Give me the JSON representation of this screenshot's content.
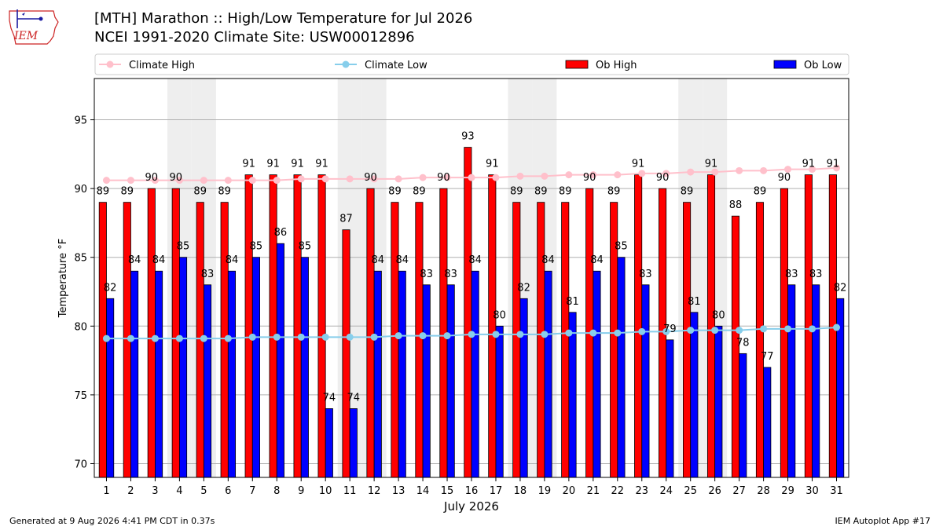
{
  "header": {
    "title": "[MTH] Marathon :: High/Low Temperature for Jul 2026",
    "subtitle": "NCEI 1991-2020 Climate Site: USW00012896",
    "logo_text": "IEM"
  },
  "footer": {
    "left": "Generated at 9 Aug 2026 4:41 PM CDT in 0.37s",
    "right": "IEM Autoplot App #17"
  },
  "colors": {
    "ob_high": "#ff0000",
    "ob_low": "#0000ff",
    "climate_high": "#ffc0cb",
    "climate_low": "#87ceeb",
    "weekend_band": "#eeeeee",
    "logo": "#cc2222"
  },
  "chart_data": {
    "type": "bar",
    "title": "[MTH] Marathon :: High/Low Temperature for Jul 2026",
    "subtitle": "NCEI 1991-2020 Climate Site: USW00012896",
    "xlabel": "July 2026",
    "ylabel": "Temperature °F",
    "ylim": [
      69,
      98
    ],
    "yticks": [
      70,
      75,
      80,
      85,
      90,
      95
    ],
    "grid": true,
    "legend_position": "top",
    "categories": [
      1,
      2,
      3,
      4,
      5,
      6,
      7,
      8,
      9,
      10,
      11,
      12,
      13,
      14,
      15,
      16,
      17,
      18,
      19,
      20,
      21,
      22,
      23,
      24,
      25,
      26,
      27,
      28,
      29,
      30,
      31
    ],
    "shaded_days": [
      4,
      5,
      11,
      12,
      18,
      19,
      25,
      26
    ],
    "series": [
      {
        "name": "Ob High",
        "kind": "bar",
        "values": [
          89,
          89,
          90,
          90,
          89,
          89,
          91,
          91,
          91,
          91,
          87,
          90,
          89,
          89,
          90,
          93,
          91,
          89,
          89,
          89,
          90,
          89,
          91,
          90,
          89,
          91,
          88,
          89,
          90,
          91,
          91
        ]
      },
      {
        "name": "Ob Low",
        "kind": "bar",
        "values": [
          82,
          84,
          84,
          85,
          83,
          84,
          85,
          86,
          85,
          74,
          74,
          84,
          84,
          83,
          83,
          84,
          80,
          82,
          84,
          81,
          84,
          85,
          83,
          79,
          81,
          80,
          78,
          77,
          83,
          83,
          82
        ]
      },
      {
        "name": "Climate High",
        "kind": "line",
        "values": [
          90.6,
          90.6,
          90.6,
          90.6,
          90.6,
          90.6,
          90.6,
          90.6,
          90.7,
          90.7,
          90.7,
          90.7,
          90.7,
          90.8,
          90.8,
          90.8,
          90.8,
          90.9,
          90.9,
          91.0,
          91.0,
          91.0,
          91.1,
          91.1,
          91.2,
          91.2,
          91.3,
          91.3,
          91.4,
          91.4,
          91.5
        ]
      },
      {
        "name": "Climate Low",
        "kind": "line",
        "values": [
          79.1,
          79.1,
          79.1,
          79.1,
          79.1,
          79.1,
          79.2,
          79.2,
          79.2,
          79.2,
          79.2,
          79.2,
          79.3,
          79.3,
          79.3,
          79.4,
          79.4,
          79.4,
          79.4,
          79.5,
          79.5,
          79.5,
          79.6,
          79.6,
          79.7,
          79.7,
          79.7,
          79.8,
          79.8,
          79.8,
          79.9
        ]
      }
    ]
  }
}
